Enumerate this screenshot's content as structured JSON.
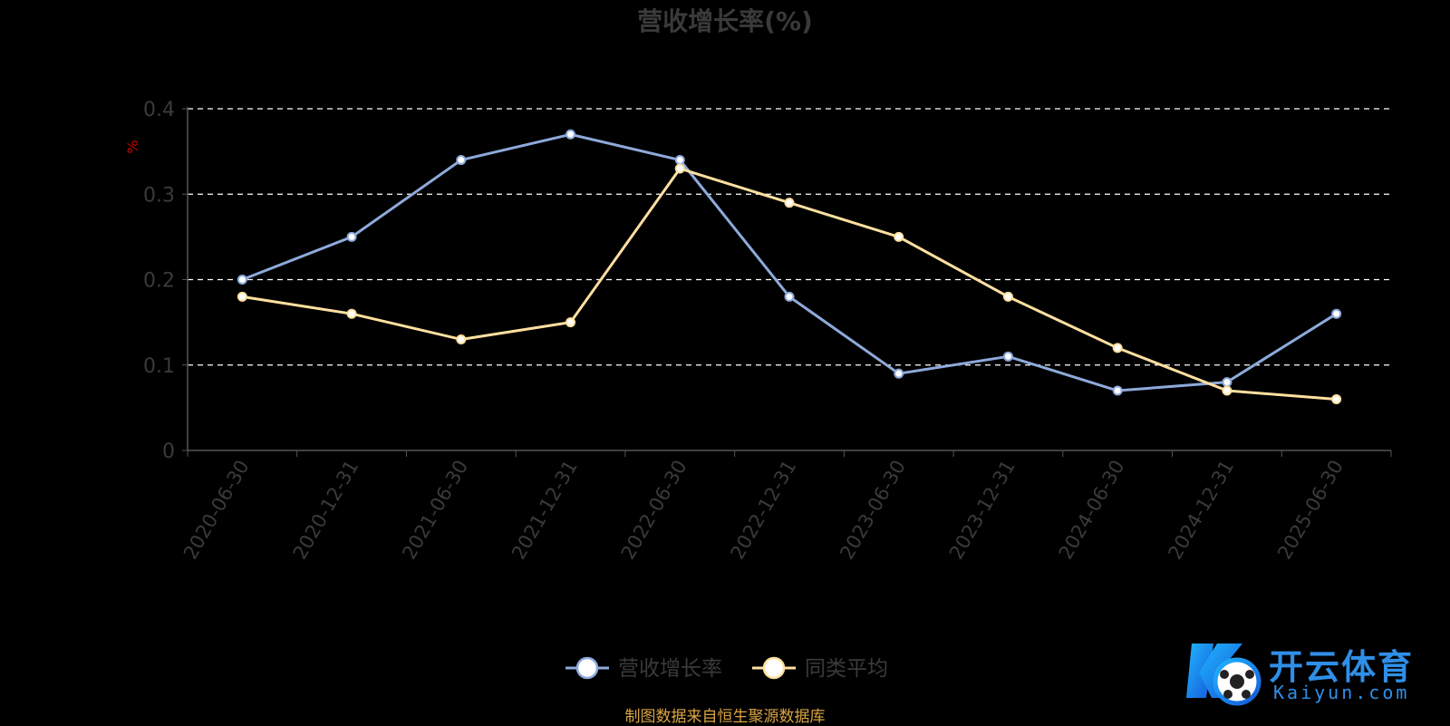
{
  "chart_data": {
    "type": "line",
    "title": "营收增长率(%)",
    "ylabel": "%",
    "x": [
      "2020-06-30",
      "2020-12-31",
      "2021-06-30",
      "2021-12-31",
      "2022-06-30",
      "2022-12-31",
      "2023-06-30",
      "2023-12-31",
      "2024-06-30",
      "2024-12-31",
      "2025-06-30"
    ],
    "y_ticks": [
      "0",
      "0.1",
      "0.2",
      "0.3",
      "0.4"
    ],
    "ylim": [
      0,
      0.4
    ],
    "grid": true,
    "legend_position": "bottom",
    "series": [
      {
        "name": "营收增长率",
        "color": "#8eaadb",
        "values": [
          0.2,
          0.25,
          0.34,
          0.37,
          0.34,
          0.18,
          0.09,
          0.11,
          0.07,
          0.08,
          0.16
        ]
      },
      {
        "name": "同类平均",
        "color": "#ffe0a0",
        "values": [
          0.18,
          0.16,
          0.13,
          0.15,
          0.33,
          0.29,
          0.25,
          0.18,
          0.12,
          0.07,
          0.06
        ]
      }
    ]
  },
  "source": "制图数据来自恒生聚源数据库",
  "logo": {
    "cn": "开云体育",
    "en": "Kaiyun.com"
  },
  "colors": {
    "background": "#000000",
    "axis": "#555555",
    "text": "#3a3a3a",
    "ylabel": "#cc0000",
    "source": "#d9a441"
  }
}
